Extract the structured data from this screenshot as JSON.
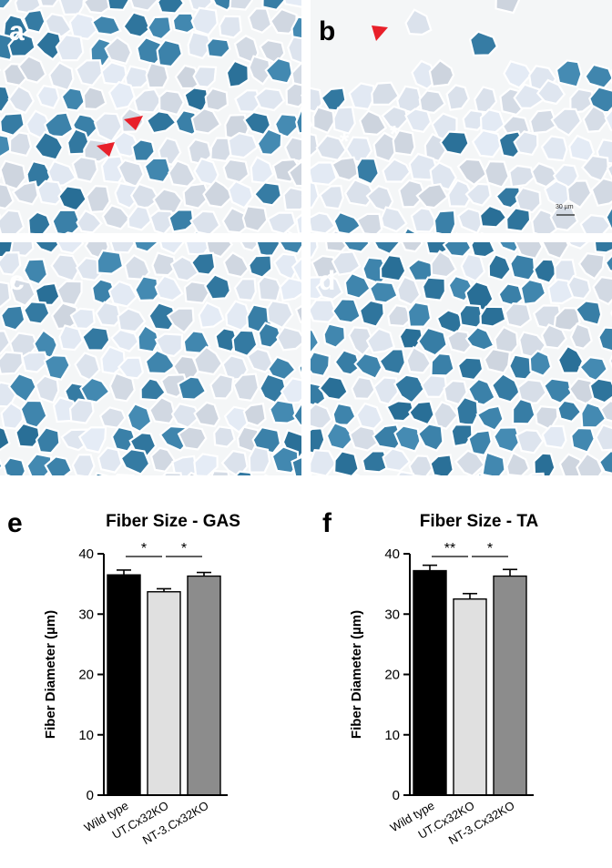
{
  "micrographs": [
    {
      "letter": "a",
      "palette": "mixed"
    },
    {
      "letter": "b",
      "palette": "pale",
      "scale_bar": "30 µm"
    },
    {
      "letter": "c",
      "palette": "mixed"
    },
    {
      "letter": "d",
      "palette": "dark"
    }
  ],
  "annotations": {
    "asterisk": "*"
  },
  "colors": {
    "wild_type": "#000000",
    "ut_cx32ko": "#e0e0e0",
    "nt3_cx32ko": "#8c8c8c",
    "dark_fiber": "#3d7fa0",
    "pale_fiber": "#d9dfe6",
    "arrow": "#e8202a"
  },
  "chart_data": [
    {
      "type": "bar",
      "panel": "e",
      "title": "Fiber Size - GAS",
      "ylabel": "Fiber Diameter (µm)",
      "categories": [
        "Wild type",
        "UT.Cx32KO",
        "NT-3.Cx32KO"
      ],
      "values": [
        36.5,
        33.7,
        36.3
      ],
      "errors": [
        0.8,
        0.5,
        0.6
      ],
      "ylim": [
        0,
        40
      ],
      "yticks": [
        0,
        10,
        20,
        30,
        40
      ],
      "significance": [
        {
          "from": 0,
          "to": 1,
          "label": "*"
        },
        {
          "from": 1,
          "to": 2,
          "label": "*"
        }
      ]
    },
    {
      "type": "bar",
      "panel": "f",
      "title": "Fiber Size - TA",
      "ylabel": "Fiber Diameter (µm)",
      "categories": [
        "Wild type",
        "UT.Cx32KO",
        "NT-3.Cx32KO"
      ],
      "values": [
        37.2,
        32.5,
        36.3
      ],
      "errors": [
        0.9,
        0.9,
        1.1
      ],
      "ylim": [
        0,
        40
      ],
      "yticks": [
        0,
        10,
        20,
        30,
        40
      ],
      "significance": [
        {
          "from": 0,
          "to": 1,
          "label": "**"
        },
        {
          "from": 1,
          "to": 2,
          "label": "*"
        }
      ]
    }
  ]
}
